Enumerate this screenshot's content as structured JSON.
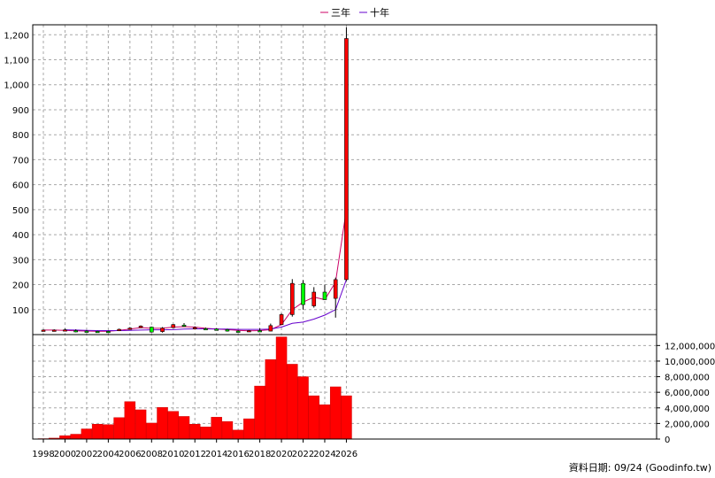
{
  "chart_data": {
    "type": "candlestick+line+bar",
    "title": "",
    "legend": [
      {
        "name": "三年",
        "color": "#cc0066"
      },
      {
        "name": "十年",
        "color": "#6600cc"
      }
    ],
    "legend_position": "top-center",
    "credit": "資料日期: 09/24 (Goodinfo.tw)",
    "price_axis": {
      "ticks": [
        100,
        200,
        300,
        400,
        500,
        600,
        700,
        800,
        900,
        1000,
        1100,
        1200
      ],
      "tick_labels": [
        "100",
        "200",
        "300",
        "400",
        "500",
        "600",
        "700",
        "800",
        "900",
        "1,000",
        "1,100",
        "1,200"
      ],
      "ylim": [
        0,
        1240
      ]
    },
    "volume_axis": {
      "ticks": [
        0,
        2000000,
        4000000,
        6000000,
        8000000,
        10000000,
        12000000
      ],
      "tick_labels": [
        "0",
        "2,000,000",
        "4,000,000",
        "6,000,000",
        "8,000,000",
        "10,000,000",
        "12,000,000"
      ],
      "ylim": [
        0,
        13400000
      ]
    },
    "x_tick_labels": [
      "1998",
      "2000",
      "2002",
      "2004",
      "2006",
      "2008",
      "2010",
      "2012",
      "2014",
      "2016",
      "2018",
      "2020",
      "2022",
      "2024",
      "2026"
    ],
    "grid": true,
    "years": [
      1998,
      1999,
      2000,
      2001,
      2002,
      2003,
      2004,
      2005,
      2006,
      2007,
      2008,
      2009,
      2010,
      2011,
      2012,
      2013,
      2014,
      2015,
      2016,
      2017,
      2018,
      2019,
      2020,
      2021,
      2022,
      2023,
      2024,
      2025,
      2026
    ],
    "candles": [
      {
        "year": 1998,
        "open": 18,
        "high": 21,
        "low": 15,
        "close": 18
      },
      {
        "year": 1999,
        "open": 18,
        "high": 21,
        "low": 15,
        "close": 18
      },
      {
        "year": 2000,
        "open": 18,
        "high": 24,
        "low": 14,
        "close": 19
      },
      {
        "year": 2001,
        "open": 16,
        "high": 21,
        "low": 9,
        "close": 15
      },
      {
        "year": 2002,
        "open": 14,
        "high": 17,
        "low": 10,
        "close": 13
      },
      {
        "year": 2003,
        "open": 13,
        "high": 15,
        "low": 10,
        "close": 12
      },
      {
        "year": 2004,
        "open": 13,
        "high": 15,
        "low": 10,
        "close": 12
      },
      {
        "year": 2005,
        "open": 16,
        "high": 24,
        "low": 14,
        "close": 21
      },
      {
        "year": 2006,
        "open": 22,
        "high": 30,
        "low": 20,
        "close": 26
      },
      {
        "year": 2007,
        "open": 28,
        "high": 37,
        "low": 26,
        "close": 34
      },
      {
        "year": 2008,
        "open": 30,
        "high": 32,
        "low": 8,
        "close": 10
      },
      {
        "year": 2009,
        "open": 12,
        "high": 30,
        "low": 8,
        "close": 26
      },
      {
        "year": 2010,
        "open": 28,
        "high": 42,
        "low": 26,
        "close": 40
      },
      {
        "year": 2011,
        "open": 38,
        "high": 46,
        "low": 32,
        "close": 34
      },
      {
        "year": 2012,
        "open": 28,
        "high": 33,
        "low": 24,
        "close": 28
      },
      {
        "year": 2013,
        "open": 24,
        "high": 28,
        "low": 19,
        "close": 22
      },
      {
        "year": 2014,
        "open": 22,
        "high": 25,
        "low": 18,
        "close": 20
      },
      {
        "year": 2015,
        "open": 20,
        "high": 23,
        "low": 12,
        "close": 14
      },
      {
        "year": 2016,
        "open": 14,
        "high": 17,
        "low": 10,
        "close": 13
      },
      {
        "year": 2017,
        "open": 15,
        "high": 18,
        "low": 12,
        "close": 16
      },
      {
        "year": 2018,
        "open": 16,
        "high": 25,
        "low": 12,
        "close": 15
      },
      {
        "year": 2019,
        "open": 14,
        "high": 44,
        "low": 13,
        "close": 36
      },
      {
        "year": 2020,
        "open": 40,
        "high": 85,
        "low": 38,
        "close": 80
      },
      {
        "year": 2021,
        "open": 80,
        "high": 222,
        "low": 72,
        "close": 205
      },
      {
        "year": 2022,
        "open": 205,
        "high": 218,
        "low": 100,
        "close": 120
      },
      {
        "year": 2023,
        "open": 115,
        "high": 190,
        "low": 108,
        "close": 170
      },
      {
        "year": 2024,
        "open": 170,
        "high": 200,
        "low": 140,
        "close": 140
      },
      {
        "year": 2025,
        "open": 145,
        "high": 228,
        "low": 68,
        "close": 220
      },
      {
        "year": 2026,
        "open": 220,
        "high": 1230,
        "low": 215,
        "close": 1185
      }
    ],
    "series": [
      {
        "name": "三年",
        "values": [
          18,
          18,
          17,
          15,
          14,
          13,
          13,
          17,
          22,
          28,
          25,
          25,
          30,
          32,
          30,
          25,
          22,
          20,
          17,
          15,
          16,
          20,
          40,
          100,
          130,
          150,
          140,
          210,
          500
        ]
      },
      {
        "name": "十年",
        "values": [
          null,
          null,
          19,
          18,
          17,
          16,
          16,
          16,
          17,
          18,
          19,
          19,
          20,
          22,
          23,
          23,
          22,
          22,
          21,
          21,
          21,
          22,
          30,
          45,
          50,
          62,
          78,
          100,
          220
        ]
      }
    ],
    "volume": [
      50000,
      120000,
      430000,
      620000,
      1300000,
      1900000,
      1850000,
      2750000,
      4800000,
      3750000,
      2050000,
      4050000,
      3550000,
      2900000,
      1900000,
      1550000,
      2800000,
      2250000,
      1150000,
      2600000,
      6800000,
      10200000,
      13100000,
      9600000,
      8000000,
      5550000,
      4400000,
      6700000,
      5550000
    ]
  }
}
